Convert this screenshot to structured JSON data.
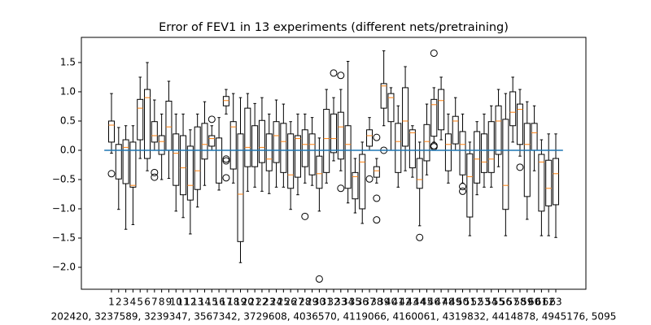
{
  "chart_data": {
    "type": "box",
    "title": "Error of FEV1 in 13 experiments (different nets/pretraining)",
    "x_label": "202420, 3237589, 3239347, 3567342, 3729608, 4036570, 4119066, 4160061, 4319832, 4414878, 4945176, 5095",
    "categories": [
      "1",
      "2",
      "3",
      "4",
      "5",
      "6",
      "7",
      "8",
      "9",
      "10",
      "11",
      "12",
      "13",
      "14",
      "15",
      "16",
      "17",
      "18",
      "19",
      "20",
      "21",
      "22",
      "23",
      "24",
      "25",
      "26",
      "27",
      "28",
      "29",
      "30",
      "31",
      "32",
      "33",
      "34",
      "35",
      "36",
      "37",
      "38",
      "39",
      "40",
      "41",
      "42",
      "43",
      "44",
      "45",
      "46",
      "47",
      "48",
      "49",
      "50",
      "51",
      "52",
      "53",
      "54",
      "55",
      "56",
      "57",
      "58",
      "59",
      "60",
      "61",
      "62",
      "63"
    ],
    "x": [
      1,
      2,
      3,
      4,
      5,
      6,
      7,
      8,
      9,
      10,
      11,
      12,
      13,
      14,
      15,
      16,
      17,
      18,
      19,
      20,
      21,
      22,
      23,
      24,
      25,
      26,
      27,
      28,
      29,
      30,
      31,
      32,
      33,
      34,
      35,
      36,
      37,
      38,
      39,
      40,
      41,
      42,
      43,
      44,
      45,
      46,
      47,
      48,
      49,
      50,
      51,
      52,
      53,
      54,
      55,
      56,
      57,
      58,
      59,
      60,
      61,
      62,
      63
    ],
    "stats": [
      [
        -0.05,
        0.14,
        0.43,
        0.5,
        0.97
      ],
      [
        -1.01,
        -0.49,
        0.0,
        0.1,
        0.39
      ],
      [
        -1.35,
        -0.57,
        0.05,
        0.18,
        0.42
      ],
      [
        -1.27,
        -0.63,
        -0.6,
        0.14,
        0.42
      ],
      [
        -0.14,
        0.18,
        0.72,
        0.87,
        1.25
      ],
      [
        -0.35,
        -0.14,
        0.9,
        1.04,
        1.5
      ],
      [
        0.0,
        0.14,
        0.25,
        0.49,
        0.86
      ],
      [
        -0.5,
        -0.07,
        0.15,
        0.25,
        0.62
      ],
      [
        -0.48,
        0.0,
        0.4,
        0.84,
        1.18
      ],
      [
        -1.04,
        -0.6,
        -0.05,
        0.28,
        0.62
      ],
      [
        -1.15,
        -0.76,
        -0.3,
        0.25,
        0.62
      ],
      [
        -1.43,
        -0.85,
        -0.6,
        0.07,
        0.35
      ],
      [
        -0.97,
        -0.67,
        -0.35,
        0.4,
        0.62
      ],
      [
        -0.6,
        -0.15,
        0.1,
        0.46,
        0.83
      ],
      [
        0.0,
        0.07,
        0.2,
        0.25,
        0.42
      ],
      [
        -0.68,
        -0.56,
        0.0,
        0.21,
        0.56
      ],
      [
        0.62,
        0.76,
        0.85,
        0.92,
        1.04
      ],
      [
        -0.56,
        -0.32,
        0.4,
        0.49,
        0.97
      ],
      [
        -1.92,
        -1.56,
        -0.75,
        0.28,
        0.9
      ],
      [
        -0.7,
        -0.28,
        0.05,
        0.72,
        0.97
      ],
      [
        -0.63,
        -0.28,
        0.0,
        0.42,
        0.8
      ],
      [
        -0.7,
        -0.21,
        0.05,
        0.51,
        0.9
      ],
      [
        -0.74,
        -0.35,
        -0.15,
        0.28,
        0.62
      ],
      [
        -0.63,
        -0.21,
        0.25,
        0.49,
        0.86
      ],
      [
        -0.63,
        -0.38,
        0.15,
        0.46,
        0.79
      ],
      [
        -1.01,
        -0.65,
        -0.42,
        0.28,
        0.49
      ],
      [
        -0.76,
        -0.46,
        0.2,
        0.25,
        0.62
      ],
      [
        -0.56,
        -0.28,
        0.1,
        0.35,
        0.62
      ],
      [
        -0.6,
        -0.42,
        0.1,
        0.28,
        0.56
      ],
      [
        -1.04,
        -0.65,
        -0.4,
        -0.1,
        0.21
      ],
      [
        -0.56,
        -0.38,
        0.2,
        0.7,
        1.04
      ],
      [
        -0.18,
        -0.04,
        0.2,
        0.62,
        0.9
      ],
      [
        -0.35,
        -0.15,
        0.4,
        0.65,
        1.04
      ],
      [
        -0.9,
        -0.65,
        0.1,
        0.42,
        1.52
      ],
      [
        -1.07,
        -0.83,
        -0.45,
        -0.38,
        -0.14
      ],
      [
        -1.25,
        -1.0,
        -0.2,
        -0.07,
        0.14
      ],
      [
        0.0,
        0.07,
        0.25,
        0.35,
        0.56
      ],
      [
        -0.56,
        -0.46,
        -0.35,
        -0.28,
        -0.14
      ],
      [
        0.42,
        0.72,
        1.1,
        1.14,
        1.7
      ],
      [
        0.0,
        0.49,
        0.9,
        0.97,
        1.07
      ],
      [
        -0.63,
        -0.38,
        0.15,
        0.46,
        0.76
      ],
      [
        -0.35,
        0.07,
        0.5,
        1.07,
        1.43
      ],
      [
        -0.46,
        -0.3,
        0.3,
        0.35,
        0.42
      ],
      [
        -1.29,
        -0.65,
        -0.5,
        -0.14,
        0.14
      ],
      [
        -0.42,
        -0.18,
        0.15,
        0.44,
        0.79
      ],
      [
        0.14,
        0.24,
        0.78,
        0.87,
        1.07
      ],
      [
        0.18,
        0.35,
        0.85,
        1.04,
        1.25
      ],
      [
        -0.56,
        -0.35,
        0.1,
        0.28,
        0.62
      ],
      [
        0.0,
        0.11,
        0.5,
        0.58,
        0.9
      ],
      [
        -0.56,
        -0.42,
        0.1,
        0.32,
        0.62
      ],
      [
        -1.46,
        -1.14,
        -0.45,
        -0.06,
        0.14
      ],
      [
        -0.76,
        -0.56,
        -0.15,
        0.32,
        0.49
      ],
      [
        -0.63,
        -0.38,
        -0.2,
        0.28,
        0.62
      ],
      [
        -0.63,
        -0.38,
        -0.15,
        0.49,
        0.76
      ],
      [
        -0.28,
        -0.07,
        0.5,
        0.76,
        1.04
      ],
      [
        -1.46,
        -1.01,
        -0.6,
        0.53,
        0.97
      ],
      [
        0.14,
        0.42,
        0.65,
        1.0,
        1.25
      ],
      [
        -0.1,
        0.1,
        0.7,
        0.79,
        1.04
      ],
      [
        -1.18,
        -0.79,
        0.1,
        0.46,
        0.83
      ],
      [
        -0.35,
        0.0,
        0.3,
        0.46,
        0.76
      ],
      [
        -1.46,
        -1.04,
        -0.2,
        -0.07,
        0.18
      ],
      [
        -1.46,
        -0.95,
        -0.65,
        -0.17,
        0.28
      ],
      [
        -1.49,
        -0.93,
        -0.4,
        -0.14,
        0.28
      ]
    ],
    "fliers": [
      [
        -0.4
      ],
      [],
      [],
      [],
      [],
      [],
      [
        -0.38,
        -0.46
      ],
      [],
      [],
      [],
      [],
      [],
      [],
      [],
      [
        0.53
      ],
      [],
      [
        -0.15,
        -0.18,
        -0.47
      ],
      [],
      [],
      [],
      [],
      [],
      [],
      [],
      [],
      [],
      [],
      [
        -1.13
      ],
      [],
      [
        -2.2
      ],
      [],
      [
        1.32
      ],
      [
        1.28,
        -0.65
      ],
      [],
      [],
      [],
      [
        -0.49
      ],
      [
        0.22,
        -0.82,
        -1.19
      ],
      [
        0.0
      ],
      [],
      [],
      [],
      [],
      [
        -1.49
      ],
      [],
      [
        1.66,
        0.08,
        0.06
      ],
      [],
      [],
      [],
      [
        -0.62,
        -0.7
      ],
      [],
      [],
      [],
      [],
      [],
      [],
      [],
      [
        -0.29
      ],
      [],
      [],
      [],
      [],
      []
    ],
    "box_color": "#000000",
    "median_color": "#ff7f0e",
    "hline": {
      "y": 0,
      "xmin": 0,
      "xmax": 64,
      "color": "#1f77b4"
    },
    "xlim": [
      -3.2,
      67.2
    ],
    "ylim": [
      -2.375,
      1.93
    ],
    "yticks": [
      {
        "value": -2.0,
        "label": "−2.0"
      },
      {
        "value": -1.5,
        "label": "−1.5"
      },
      {
        "value": -1.0,
        "label": "−1.0"
      },
      {
        "value": -0.5,
        "label": "−0.5"
      },
      {
        "value": 0.0,
        "label": "0.0"
      },
      {
        "value": 0.5,
        "label": "0.5"
      },
      {
        "value": 1.0,
        "label": "1.0"
      },
      {
        "value": 1.5,
        "label": "1.5"
      }
    ]
  }
}
